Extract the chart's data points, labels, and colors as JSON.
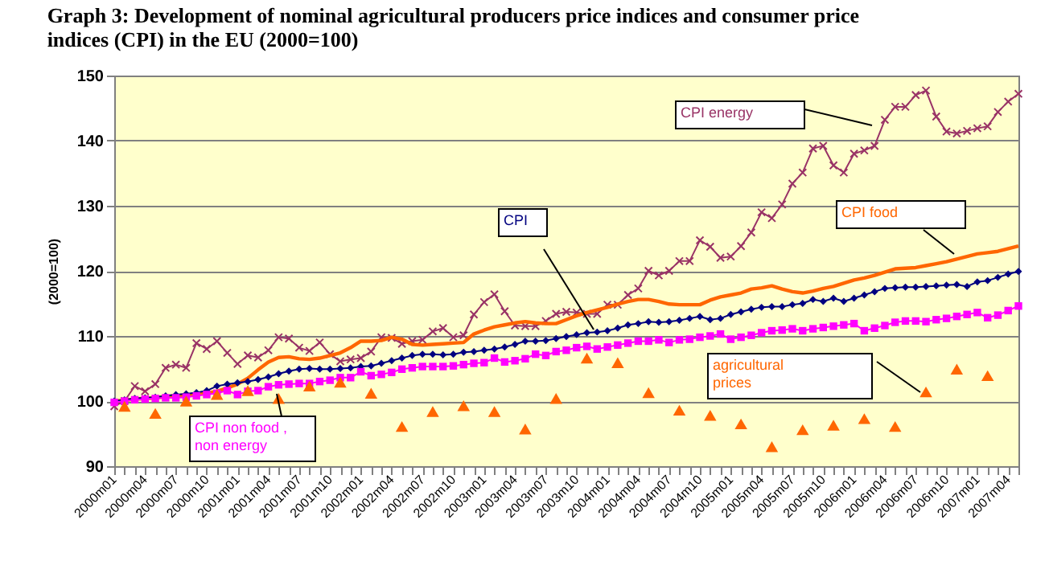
{
  "chart_data": {
    "type": "line",
    "title": "Graph 3: Development of nominal agricultural producers price indices and consumer price indices (CPI) in the EU (2000=100)",
    "ylabel": "(2000=100)",
    "categories": [
      "2000m01",
      null,
      null,
      "2000m04",
      null,
      null,
      "2000m07",
      null,
      null,
      "2000m10",
      null,
      null,
      "2001m01",
      null,
      null,
      "2001m04",
      null,
      null,
      "2001m07",
      null,
      null,
      "2001m10",
      null,
      null,
      "2002m01",
      null,
      null,
      "2002m04",
      null,
      null,
      "2002m07",
      null,
      null,
      "2002m10",
      null,
      null,
      "2003m01",
      null,
      null,
      "2003m04",
      null,
      null,
      "2003m07",
      null,
      null,
      "2003m10",
      null,
      null,
      "2004m01",
      null,
      null,
      "2004m04",
      null,
      null,
      "2004m07",
      null,
      null,
      "2004m10",
      null,
      null,
      "2005m01",
      null,
      null,
      "2005m04",
      null,
      null,
      "2005m07",
      null,
      null,
      "2005m10",
      null,
      null,
      "2006m01",
      null,
      null,
      "2006m04",
      null,
      null,
      "2006m07",
      null,
      null,
      "2006m10",
      null,
      null,
      "2007m01",
      null,
      null,
      "2007m04",
      null
    ],
    "ylim": [
      90,
      150
    ],
    "yticks": [
      90,
      100,
      110,
      120,
      130,
      140,
      150
    ],
    "grid": "y",
    "series": [
      {
        "name": "CPI energy",
        "marker": "cross",
        "color": "#993366",
        "values": [
          99.2,
          100.0,
          102.3,
          101.5,
          102.6,
          105.1,
          105.6,
          105.1,
          108.9,
          108.0,
          109.2,
          107.4,
          105.7,
          107.0,
          106.7,
          107.8,
          109.8,
          109.6,
          108.2,
          107.7,
          109.0,
          107.2,
          106.1,
          106.4,
          106.6,
          107.6,
          109.8,
          109.7,
          108.8,
          109.2,
          109.4,
          110.7,
          111.2,
          109.8,
          110.1,
          113.3,
          115.2,
          116.4,
          113.8,
          111.6,
          111.5,
          111.5,
          112.3,
          113.4,
          113.7,
          113.6,
          113.4,
          113.4,
          114.8,
          114.8,
          116.3,
          117.3,
          120.0,
          119.3,
          120.0,
          121.5,
          121.5,
          124.7,
          123.7,
          122.0,
          122.2,
          123.8,
          125.9,
          129.0,
          128.1,
          130.2,
          133.4,
          135.1,
          138.8,
          139.2,
          136.2,
          135.1,
          138.0,
          138.5,
          139.2,
          143.2,
          145.2,
          145.2,
          147.0,
          147.7,
          143.7,
          141.4,
          141.1,
          141.5,
          141.9,
          142.2,
          144.4,
          146.0,
          147.2
        ]
      },
      {
        "name": "CPI food",
        "marker": "none",
        "color": "#ff6600",
        "values": [
          100.0,
          100.1,
          100.3,
          100.4,
          100.5,
          100.7,
          100.8,
          100.9,
          101.0,
          101.2,
          101.5,
          102.0,
          102.6,
          103.5,
          104.8,
          106.0,
          106.7,
          106.8,
          106.5,
          106.4,
          106.6,
          107.0,
          107.4,
          108.2,
          109.2,
          109.2,
          109.3,
          109.8,
          109.5,
          108.7,
          108.6,
          108.7,
          108.8,
          108.9,
          109.0,
          110.3,
          110.9,
          111.4,
          111.7,
          112.0,
          112.2,
          112.0,
          111.9,
          111.9,
          112.5,
          113.1,
          113.6,
          114.0,
          114.4,
          114.9,
          115.3,
          115.6,
          115.6,
          115.3,
          114.9,
          114.8,
          114.8,
          114.8,
          115.5,
          116.0,
          116.3,
          116.6,
          117.2,
          117.4,
          117.7,
          117.2,
          116.8,
          116.6,
          116.9,
          117.3,
          117.6,
          118.1,
          118.6,
          118.9,
          119.3,
          119.8,
          120.3,
          120.4,
          120.5,
          120.8,
          121.1,
          121.4,
          121.8,
          122.2,
          122.6,
          122.8,
          123.0,
          123.4,
          123.8
        ]
      },
      {
        "name": "CPI",
        "marker": "diamond",
        "color": "#000080",
        "values": [
          100.0,
          100.2,
          100.4,
          100.5,
          100.6,
          100.8,
          101.0,
          101.1,
          101.3,
          101.6,
          102.3,
          102.6,
          102.8,
          103.0,
          103.3,
          103.7,
          104.2,
          104.6,
          104.9,
          105.0,
          104.9,
          104.9,
          105.0,
          105.1,
          105.3,
          105.4,
          105.8,
          106.2,
          106.6,
          107.0,
          107.2,
          107.2,
          107.1,
          107.2,
          107.5,
          107.6,
          107.8,
          108.0,
          108.3,
          108.7,
          109.2,
          109.2,
          109.3,
          109.6,
          109.9,
          110.2,
          110.5,
          110.6,
          110.8,
          111.2,
          111.7,
          111.9,
          112.2,
          112.1,
          112.2,
          112.4,
          112.7,
          113.0,
          112.5,
          112.7,
          113.3,
          113.7,
          114.1,
          114.4,
          114.5,
          114.5,
          114.8,
          115.0,
          115.6,
          115.3,
          115.8,
          115.3,
          115.8,
          116.3,
          116.8,
          117.3,
          117.4,
          117.5,
          117.5,
          117.6,
          117.7,
          117.8,
          117.9,
          117.6,
          118.3,
          118.5,
          119.0,
          119.5,
          119.9
        ]
      },
      {
        "name": "CPI non food , non energy",
        "marker": "square",
        "color": "#ff00ff",
        "values": [
          99.8,
          100.0,
          100.2,
          100.3,
          100.4,
          100.5,
          100.5,
          100.6,
          100.8,
          101.0,
          101.2,
          101.6,
          101.0,
          101.5,
          101.6,
          102.2,
          102.5,
          102.6,
          102.7,
          102.7,
          103.0,
          103.2,
          103.6,
          103.6,
          104.5,
          103.9,
          104.1,
          104.4,
          104.9,
          105.1,
          105.3,
          105.3,
          105.3,
          105.4,
          105.6,
          105.8,
          105.9,
          106.6,
          106.0,
          106.2,
          106.5,
          107.2,
          107.0,
          107.6,
          107.8,
          108.2,
          108.4,
          108.0,
          108.3,
          108.6,
          108.9,
          109.2,
          109.2,
          109.4,
          109.0,
          109.4,
          109.5,
          109.8,
          110.0,
          110.3,
          109.5,
          109.8,
          110.1,
          110.5,
          110.8,
          110.9,
          111.1,
          110.8,
          111.1,
          111.3,
          111.5,
          111.7,
          111.9,
          110.8,
          111.2,
          111.6,
          112.1,
          112.3,
          112.3,
          112.2,
          112.5,
          112.7,
          113.0,
          113.3,
          113.6,
          112.8,
          113.2,
          113.9,
          114.6
        ]
      },
      {
        "name": "agricultural prices",
        "type": "scatter",
        "marker": "triangle",
        "color": "#ff6600",
        "values": [
          null,
          99.2,
          null,
          null,
          98.1,
          null,
          null,
          100.0,
          null,
          null,
          101.0,
          null,
          null,
          101.6,
          null,
          null,
          100.4,
          null,
          null,
          102.3,
          null,
          null,
          102.9,
          null,
          null,
          101.2,
          null,
          null,
          96.1,
          null,
          null,
          98.4,
          null,
          null,
          99.3,
          null,
          null,
          98.4,
          null,
          null,
          95.7,
          null,
          null,
          100.4,
          null,
          null,
          106.6,
          null,
          null,
          105.9,
          null,
          null,
          101.3,
          null,
          null,
          98.6,
          null,
          null,
          97.8,
          null,
          null,
          96.5,
          null,
          null,
          93.0,
          null,
          null,
          95.6,
          null,
          null,
          96.3,
          null,
          null,
          97.3,
          null,
          null,
          96.1,
          null,
          null,
          101.4,
          null,
          null,
          104.9,
          null,
          null,
          103.9,
          null,
          null,
          null
        ]
      }
    ]
  }
}
